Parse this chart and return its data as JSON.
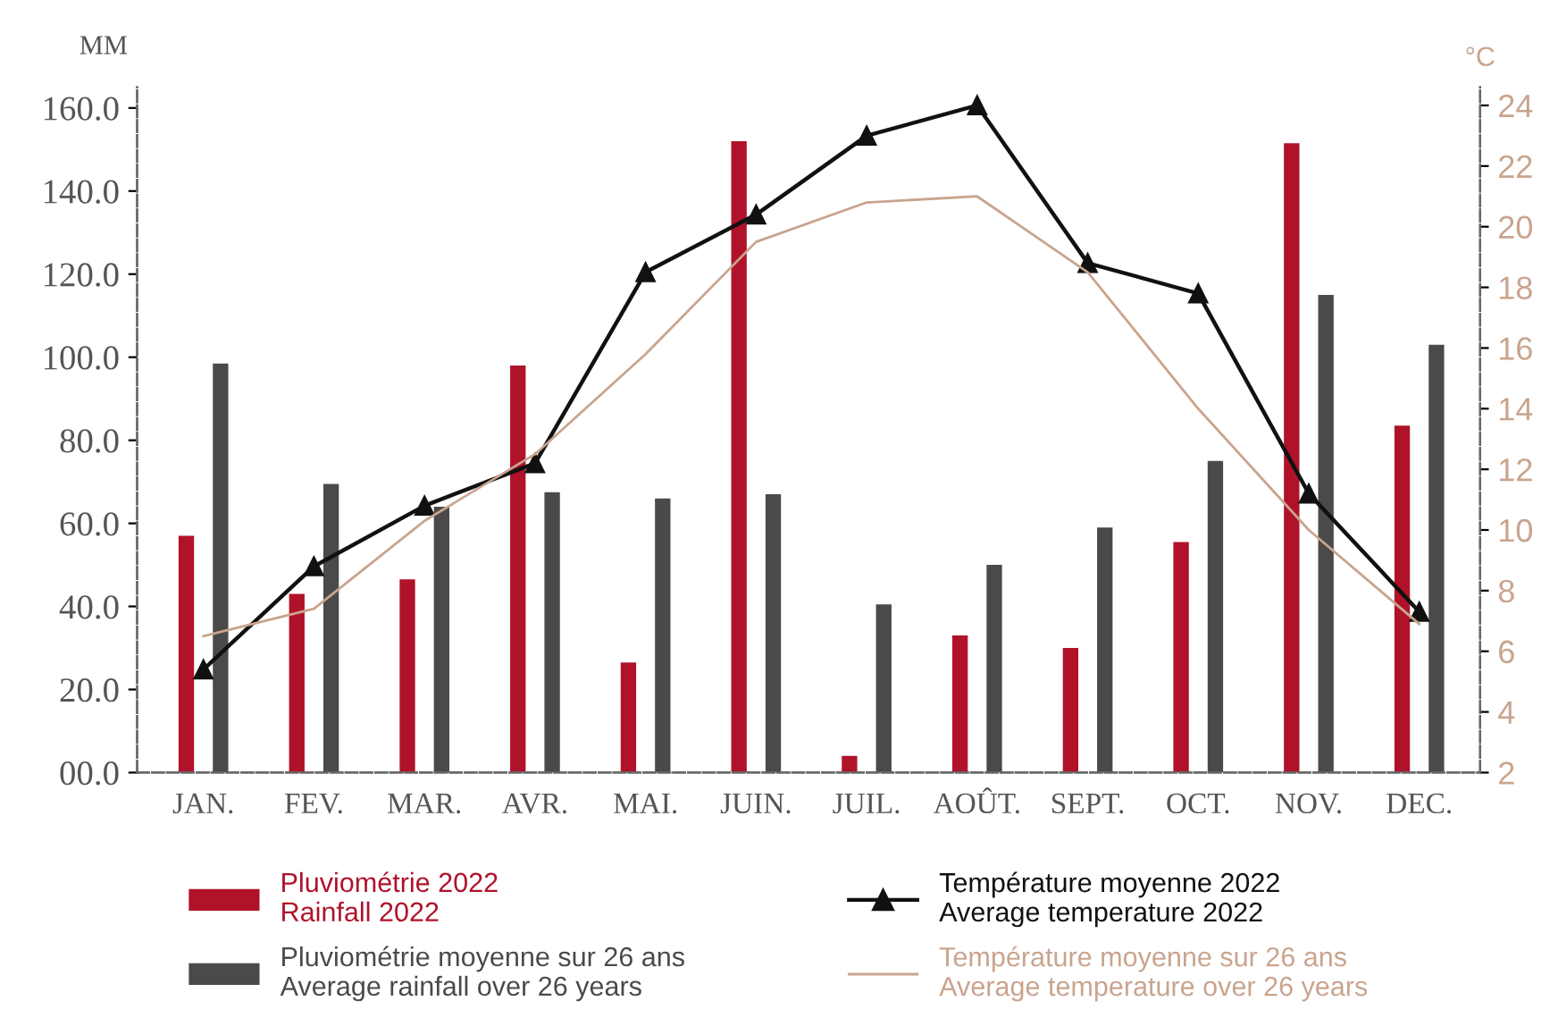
{
  "chart_data": {
    "type": "bar",
    "ylabel": "MM",
    "y2label": "°C",
    "categories": [
      "JAN.",
      "FEV.",
      "MAR.",
      "AVR.",
      "MAI.",
      "JUIN.",
      "JUIL.",
      "AOÛT.",
      "SEPT.",
      "OCT.",
      "NOV.",
      "DEC."
    ],
    "series": [
      {
        "name": "Pluviométrie 2022\nRainfall 2022",
        "color": "#b0122a",
        "values": [
          57,
          43,
          46.5,
          98,
          26.5,
          152,
          4,
          33,
          30,
          55.5,
          151.5,
          83.5
        ]
      },
      {
        "name": "Pluviométrie moyenne sur 26 ans\nAverage rainfall over 26 years",
        "color": "#4a4a4a",
        "values": [
          98.5,
          69.5,
          64,
          67.5,
          66,
          67,
          40.5,
          50,
          59,
          75,
          115,
          103
        ]
      },
      {
        "name": "Température moyenne 2022\nAverage temperature 2022",
        "type": "line",
        "axis": "y2",
        "color": "#111111",
        "marker": "triangle",
        "values": [
          5.4,
          8.8,
          10.8,
          12.2,
          18.5,
          20.4,
          23,
          24,
          18.8,
          17.8,
          11.2,
          7.3
        ]
      },
      {
        "name": "Température moyenne sur 26 ans\nAverage temperature over 26 years",
        "type": "line",
        "axis": "y2",
        "color": "#c9a48e",
        "marker": "none",
        "values": [
          6.5,
          7.4,
          10.3,
          12.5,
          15.8,
          19.5,
          20.8,
          21,
          18.5,
          14,
          10,
          6.9
        ]
      }
    ],
    "ylim": [
      0,
      165
    ],
    "yticks": [
      {
        "value": 0,
        "label": "00.0"
      },
      {
        "value": 20,
        "label": "20.0"
      },
      {
        "value": 40,
        "label": "40.0"
      },
      {
        "value": 60,
        "label": "60.0"
      },
      {
        "value": 80,
        "label": "80.0"
      },
      {
        "value": 100,
        "label": "100.0"
      },
      {
        "value": 120,
        "label": "120.0"
      },
      {
        "value": 140,
        "label": "140.0"
      },
      {
        "value": 160,
        "label": "160.0"
      }
    ],
    "y2lim": [
      2,
      24.6
    ],
    "y2ticks": [
      2,
      4,
      6,
      8,
      10,
      12,
      14,
      16,
      18,
      20,
      22,
      24
    ],
    "line_style": "solid",
    "grid": false,
    "legend": "bottom"
  }
}
